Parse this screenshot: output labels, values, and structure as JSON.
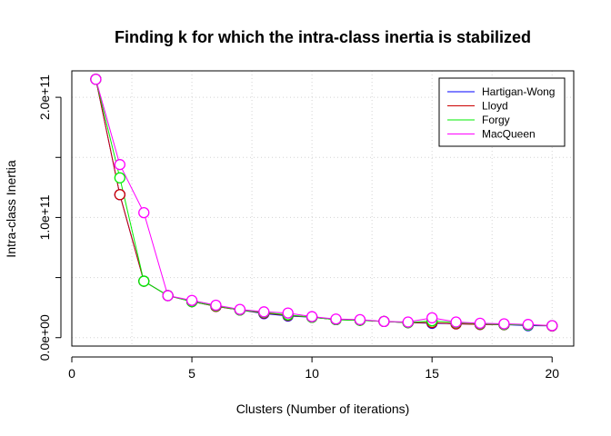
{
  "chart_data": {
    "type": "line",
    "title": "Finding k for which the intra-class inertia is stabilized",
    "xlabel": "Clusters (Number of iterations)",
    "ylabel": "Intra-class Inertia",
    "xlim": [
      0,
      20.9
    ],
    "ylim": [
      -7000000000,
      222000000000
    ],
    "x_ticks": [
      0,
      5,
      10,
      15,
      20
    ],
    "x_tick_labels": [
      "0",
      "5",
      "10",
      "15",
      "20"
    ],
    "y_ticks": [
      0,
      100000000000,
      200000000000
    ],
    "y_tick_labels": [
      "0.0e+00",
      "1.0e+11",
      "2.0e+11"
    ],
    "grid": true,
    "legend_position": "top-right",
    "x": [
      1,
      2,
      3,
      4,
      5,
      6,
      7,
      8,
      9,
      10,
      11,
      12,
      13,
      14,
      15,
      16,
      17,
      18,
      19,
      20
    ],
    "series": [
      {
        "name": "Hartigan-Wong",
        "color": "#0000ff",
        "values": [
          215000000000,
          119000000000,
          47000000000,
          35000000000,
          30000000000,
          26000000000,
          23000000000,
          20000000000,
          18000000000,
          17000000000,
          15000000000,
          14500000000,
          13500000000,
          12500000000,
          12000000000,
          11500000000,
          11000000000,
          10800000000,
          10000000000,
          9800000000
        ]
      },
      {
        "name": "Lloyd",
        "color": "#cc0000",
        "values": [
          215000000000,
          119000000000,
          47000000000,
          35000000000,
          30000000000,
          26000000000,
          23000000000,
          20500000000,
          18500000000,
          17000000000,
          15000000000,
          14500000000,
          13500000000,
          12500000000,
          12500000000,
          11500000000,
          11000000000,
          10800000000,
          10500000000,
          9800000000
        ]
      },
      {
        "name": "Forgy",
        "color": "#00ee00",
        "values": [
          215000000000,
          133000000000,
          47000000000,
          35000000000,
          30000000000,
          26500000000,
          23000000000,
          21000000000,
          19000000000,
          17000000000,
          15000000000,
          14500000000,
          13500000000,
          12500000000,
          14000000000,
          12500000000,
          11500000000,
          11000000000,
          10500000000,
          10000000000
        ]
      },
      {
        "name": "MacQueen",
        "color": "#ff00ff",
        "values": [
          215000000000,
          144000000000,
          104000000000,
          35000000000,
          31000000000,
          27000000000,
          23500000000,
          21500000000,
          20500000000,
          17500000000,
          15500000000,
          15000000000,
          13500000000,
          13000000000,
          16500000000,
          13000000000,
          12000000000,
          11500000000,
          11000000000,
          10000000000
        ]
      }
    ]
  }
}
